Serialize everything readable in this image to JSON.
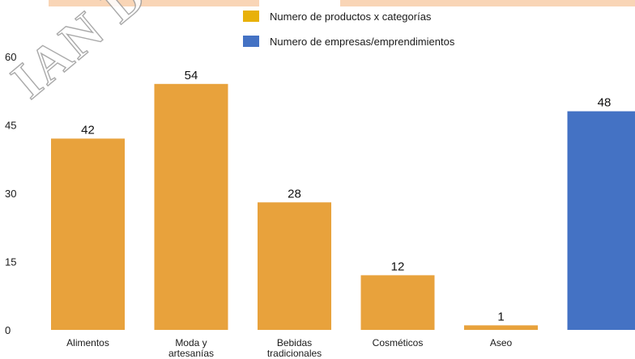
{
  "watermark": {
    "text": "IAN DE AU"
  },
  "chart_data": {
    "type": "bar",
    "title": "",
    "xlabel": "",
    "ylabel": "",
    "ylim": [
      0,
      60
    ],
    "yticks": [
      0,
      15,
      30,
      45,
      60
    ],
    "legend_position": "top",
    "categories": [
      "Alimentos",
      "Moda y artesanías",
      "Bebidas tradicionales",
      "Cosméticos",
      "Aseo",
      ""
    ],
    "category_label_lines": [
      [
        "Alimentos"
      ],
      [
        "Moda y",
        "artesanías"
      ],
      [
        "Bebidas",
        "tradicionales"
      ],
      [
        "Cosméticos"
      ],
      [
        "Aseo"
      ],
      []
    ],
    "series": [
      {
        "name": "Numero de productos x categorías",
        "color": "#e8a23c",
        "legend_color": "#e8b10a",
        "values": [
          42,
          54,
          28,
          12,
          1,
          null
        ]
      },
      {
        "name": "Numero de empresas/emprendimientos",
        "color": "#4472c4",
        "legend_color": "#4472c4",
        "values": [
          null,
          null,
          null,
          null,
          null,
          48
        ]
      }
    ],
    "grid": false
  }
}
